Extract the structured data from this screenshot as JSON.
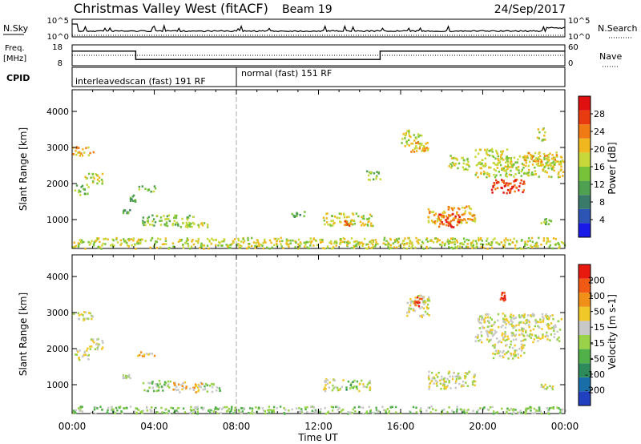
{
  "header": {
    "station": "Christmas Valley West (fitACF)",
    "beam": "Beam 19",
    "date": "24/Sep/2017"
  },
  "colors": {
    "noise_line": "#000000",
    "freq_line": "#000000",
    "ground_scatter": "#bebebe",
    "axis": "#000000",
    "midline": "#aaaaaa"
  },
  "strips": {
    "noise": {
      "left_label": "N.Sky",
      "right_label": "N.Search",
      "left_ticks": [
        "10^5",
        "10^0"
      ],
      "right_ticks": [
        "10^5",
        "10^0"
      ]
    },
    "freq": {
      "left_label_1": "Freq.",
      "left_label_2": "[MHz]",
      "right_label": "Nave",
      "left_ticks": [
        "18",
        "8"
      ],
      "right_ticks": [
        "60",
        "0"
      ],
      "freq_steps": [
        {
          "t_start": 0.0,
          "t_end": 3.1,
          "value_mhz": 15.0
        },
        {
          "t_start": 3.1,
          "t_end": 15.0,
          "value_mhz": 11.0
        },
        {
          "t_start": 15.0,
          "t_end": 24.0,
          "value_mhz": 15.0
        }
      ],
      "nave_level": 30
    },
    "cpid": {
      "label": "CPID",
      "segments": [
        {
          "label": "interleavedscan (fast) 191 RF",
          "t_start": 0.0,
          "t_end": 8.0
        },
        {
          "label": "normal (fast) 151 RF",
          "t_start": 8.0,
          "t_end": 24.0
        }
      ]
    }
  },
  "chart_data": [
    {
      "type": "heatmap",
      "name": "power",
      "ylabel": "Slant Range [km]",
      "y_ticks": [
        "1000",
        "2000",
        "3000",
        "4000"
      ],
      "ylim": [
        200,
        4600
      ],
      "colorbar_label": "Power [dB]",
      "colorbar_ticks": [
        "4",
        "8",
        "12",
        "16",
        "20",
        "24",
        "28"
      ],
      "colorbar_colors": [
        "#1a1ae8",
        "#2c55b5",
        "#3a7a6a",
        "#4fa050",
        "#78c23a",
        "#c8d83a",
        "#f0b81e",
        "#f07a14",
        "#e83c10",
        "#e01010"
      ],
      "regions": [
        {
          "t": [
            0.0,
            1.0
          ],
          "r": [
            2800,
            3050
          ],
          "level": 6
        },
        {
          "t": [
            0.1,
            0.8
          ],
          "r": [
            1700,
            2000
          ],
          "level": 4
        },
        {
          "t": [
            0.6,
            1.5
          ],
          "r": [
            2000,
            2300
          ],
          "level": 5
        },
        {
          "t": [
            2.4,
            2.8
          ],
          "r": [
            1200,
            1300
          ],
          "level": 3
        },
        {
          "t": [
            2.8,
            3.1
          ],
          "r": [
            1500,
            1700
          ],
          "level": 3
        },
        {
          "t": [
            3.2,
            4.1
          ],
          "r": [
            1800,
            1950
          ],
          "level": 4
        },
        {
          "t": [
            3.4,
            6.0
          ],
          "r": [
            850,
            1150
          ],
          "level": 4
        },
        {
          "t": [
            4.8,
            6.6
          ],
          "r": [
            800,
            950
          ],
          "level": 5
        },
        {
          "t": [
            10.6,
            11.3
          ],
          "r": [
            1100,
            1250
          ],
          "level": 3
        },
        {
          "t": [
            12.2,
            14.6
          ],
          "r": [
            850,
            1200
          ],
          "level": 5
        },
        {
          "t": [
            13.2,
            13.7
          ],
          "r": [
            850,
            1000
          ],
          "level": 7
        },
        {
          "t": [
            14.3,
            15.0
          ],
          "r": [
            2100,
            2400
          ],
          "level": 4
        },
        {
          "t": [
            16.0,
            17.0
          ],
          "r": [
            3050,
            3500
          ],
          "level": 5
        },
        {
          "t": [
            16.4,
            17.4
          ],
          "r": [
            2900,
            3200
          ],
          "level": 6
        },
        {
          "t": [
            17.3,
            19.6
          ],
          "r": [
            900,
            1400
          ],
          "level": 6
        },
        {
          "t": [
            17.8,
            19.0
          ],
          "r": [
            800,
            1200
          ],
          "level": 8
        },
        {
          "t": [
            18.3,
            19.3
          ],
          "r": [
            2400,
            2800
          ],
          "level": 5
        },
        {
          "t": [
            19.6,
            21.2
          ],
          "r": [
            2200,
            3000
          ],
          "level": 5
        },
        {
          "t": [
            20.4,
            22.0
          ],
          "r": [
            1750,
            2150
          ],
          "level": 8
        },
        {
          "t": [
            21.0,
            23.9
          ],
          "r": [
            2200,
            2800
          ],
          "level": 5
        },
        {
          "t": [
            22.0,
            23.6
          ],
          "r": [
            2500,
            2900
          ],
          "level": 6
        },
        {
          "t": [
            22.6,
            23.0
          ],
          "r": [
            3200,
            3600
          ],
          "level": 5
        },
        {
          "t": [
            22.8,
            23.5
          ],
          "r": [
            900,
            1050
          ],
          "level": 4
        },
        {
          "t": [
            0.0,
            24.0
          ],
          "r": [
            220,
            520
          ],
          "level": 5
        }
      ]
    },
    {
      "type": "heatmap",
      "name": "velocity",
      "ylabel": "Slant Range [km]",
      "y_ticks": [
        "1000",
        "2000",
        "3000",
        "4000"
      ],
      "ylim": [
        200,
        4600
      ],
      "colorbar_label": "Velocity [m s-1]",
      "colorbar_ticks": [
        "200",
        "100",
        "50",
        "15",
        "-15",
        "-50",
        "-100",
        "-200"
      ],
      "colorbar_colors": [
        "#2040c0",
        "#1a6ea8",
        "#2e8a5a",
        "#52b04a",
        "#9ad24a",
        "#c8c8c8",
        "#f0c828",
        "#f09018",
        "#f05a14",
        "#e81a10"
      ],
      "regions": [
        {
          "t": [
            0.0,
            1.0
          ],
          "r": [
            2800,
            3050
          ],
          "level": 5
        },
        {
          "t": [
            0.1,
            0.8
          ],
          "r": [
            1700,
            2000
          ],
          "level": 5
        },
        {
          "t": [
            0.6,
            1.5
          ],
          "r": [
            2000,
            2300
          ],
          "level": 5
        },
        {
          "t": [
            2.4,
            2.8
          ],
          "r": [
            1200,
            1300
          ],
          "level": 4
        },
        {
          "t": [
            3.1,
            4.0
          ],
          "r": [
            1800,
            1950
          ],
          "level": 6
        },
        {
          "t": [
            3.4,
            4.8
          ],
          "r": [
            850,
            1150
          ],
          "level": 4
        },
        {
          "t": [
            4.8,
            6.4
          ],
          "r": [
            800,
            1100
          ],
          "level": 6
        },
        {
          "t": [
            6.4,
            7.2
          ],
          "r": [
            800,
            1050
          ],
          "level": 4
        },
        {
          "t": [
            12.2,
            13.2
          ],
          "r": [
            850,
            1200
          ],
          "level": 5
        },
        {
          "t": [
            13.3,
            13.9
          ],
          "r": [
            850,
            1150
          ],
          "level": 3
        },
        {
          "t": [
            13.9,
            14.6
          ],
          "r": [
            850,
            1150
          ],
          "level": 5
        },
        {
          "t": [
            16.2,
            17.4
          ],
          "r": [
            2900,
            3500
          ],
          "level": 5
        },
        {
          "t": [
            16.6,
            17.0
          ],
          "r": [
            3150,
            3450
          ],
          "level": 8
        },
        {
          "t": [
            17.3,
            19.6
          ],
          "r": [
            900,
            1400
          ],
          "level": 5
        },
        {
          "t": [
            19.6,
            23.8
          ],
          "r": [
            2200,
            3000
          ],
          "level": 5
        },
        {
          "t": [
            20.4,
            22.0
          ],
          "r": [
            1750,
            2150
          ],
          "level": 5
        },
        {
          "t": [
            20.8,
            21.1
          ],
          "r": [
            3350,
            3600
          ],
          "level": 9
        },
        {
          "t": [
            22.8,
            23.5
          ],
          "r": [
            900,
            1050
          ],
          "level": 5
        },
        {
          "t": [
            0.0,
            24.0
          ],
          "r": [
            220,
            420
          ],
          "level": 4
        }
      ]
    }
  ],
  "x_axis": {
    "label": "Time UT",
    "ticks": [
      "00:00",
      "04:00",
      "08:00",
      "12:00",
      "16:00",
      "20:00",
      "00:00"
    ],
    "range_hours": [
      0,
      24
    ]
  }
}
